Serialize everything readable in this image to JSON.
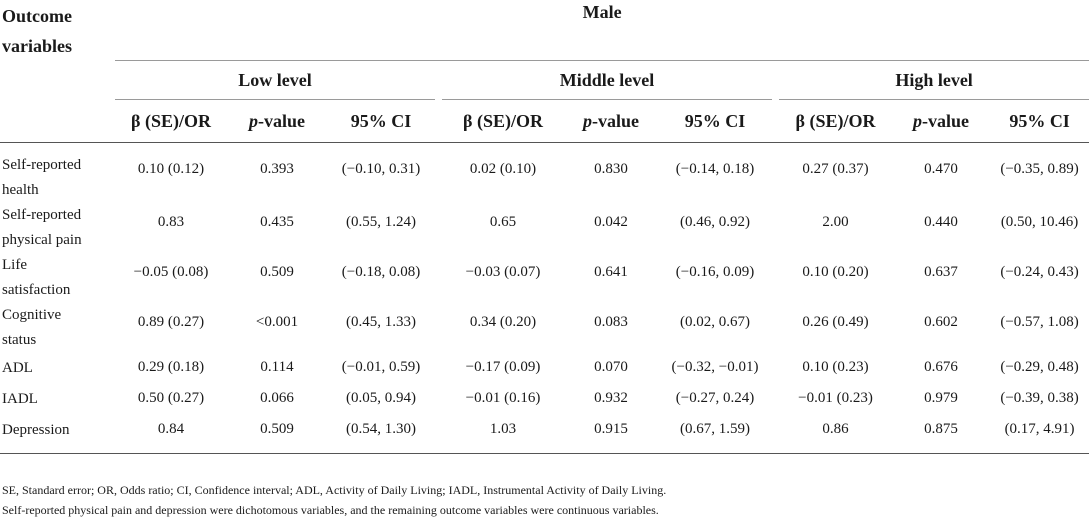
{
  "header": {
    "outcome_label_line1": "Outcome",
    "outcome_label_line2": "variables",
    "group": "Male",
    "levels": [
      "Low level",
      "Middle level",
      "High level"
    ],
    "col_beta": "β (SE)/OR",
    "col_p_italic": "p",
    "col_p_rest": "-value",
    "col_ci": "95% CI"
  },
  "rows": [
    {
      "label1": "Self-reported",
      "label2": "health",
      "v": [
        "0.10 (0.12)",
        "0.393",
        "(−0.10, 0.31)",
        "0.02 (0.10)",
        "0.830",
        "(−0.14, 0.18)",
        "0.27 (0.37)",
        "0.470",
        "(−0.35, 0.89)"
      ]
    },
    {
      "label1": "Self-reported",
      "label2": "physical pain",
      "v": [
        "0.83",
        "0.435",
        "(0.55, 1.24)",
        "0.65",
        "0.042",
        "(0.46, 0.92)",
        "2.00",
        "0.440",
        "(0.50, 10.46)"
      ]
    },
    {
      "label1": "Life",
      "label2": "satisfaction",
      "v": [
        "−0.05 (0.08)",
        "0.509",
        "(−0.18, 0.08)",
        "−0.03 (0.07)",
        "0.641",
        "(−0.16, 0.09)",
        "0.10 (0.20)",
        "0.637",
        "(−0.24, 0.43)"
      ]
    },
    {
      "label1": "Cognitive",
      "label2": "status",
      "v": [
        "0.89 (0.27)",
        "<0.001",
        "(0.45, 1.33)",
        "0.34 (0.20)",
        "0.083",
        "(0.02, 0.67)",
        "0.26 (0.49)",
        "0.602",
        "(−0.57, 1.08)"
      ]
    },
    {
      "label1": "ADL",
      "label2": "",
      "v": [
        "0.29 (0.18)",
        "0.114",
        "(−0.01, 0.59)",
        "−0.17 (0.09)",
        "0.070",
        "(−0.32, −0.01)",
        "0.10 (0.23)",
        "0.676",
        "(−0.29, 0.48)"
      ]
    },
    {
      "label1": "IADL",
      "label2": "",
      "v": [
        "0.50 (0.27)",
        "0.066",
        "(0.05, 0.94)",
        "−0.01 (0.16)",
        "0.932",
        "(−0.27, 0.24)",
        "−0.01 (0.23)",
        "0.979",
        "(−0.39, 0.38)"
      ]
    },
    {
      "label1": "Depression",
      "label2": "",
      "v": [
        "0.84",
        "0.509",
        "(0.54, 1.30)",
        "1.03",
        "0.915",
        "(0.67, 1.59)",
        "0.86",
        "0.875",
        "(0.17, 4.91)"
      ]
    }
  ],
  "notes": {
    "line1": "SE, Standard error; OR, Odds ratio; CI, Confidence interval; ADL, Activity of Daily Living; IADL, Instrumental Activity of Daily Living.",
    "line2": "Self-reported physical pain and depression were dichotomous variables, and the remaining outcome variables were continuous variables."
  }
}
